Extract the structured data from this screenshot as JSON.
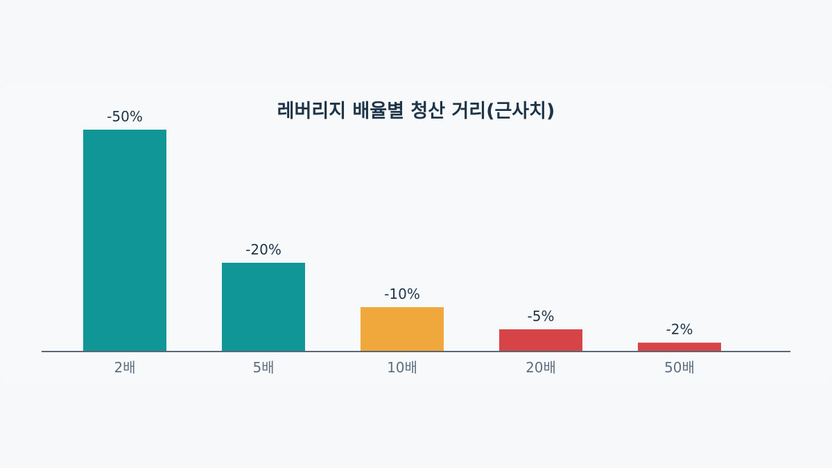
{
  "chart_data": {
    "type": "bar",
    "title": "레버리지 배율별 청산 거리(근사치)",
    "categories": [
      "2배",
      "5배",
      "10배",
      "20배",
      "50배"
    ],
    "values": [
      -50,
      -20,
      -10,
      -5,
      -2
    ],
    "value_labels": [
      "-50%",
      "-20%",
      "-10%",
      "-5%",
      "-2%"
    ],
    "bar_colors": [
      "#109696",
      "#109696",
      "#f0a83c",
      "#d74447",
      "#d74447"
    ],
    "axis_color": "#5b6675",
    "ylim": [
      -50,
      0
    ],
    "grid": false,
    "legend": "none"
  }
}
